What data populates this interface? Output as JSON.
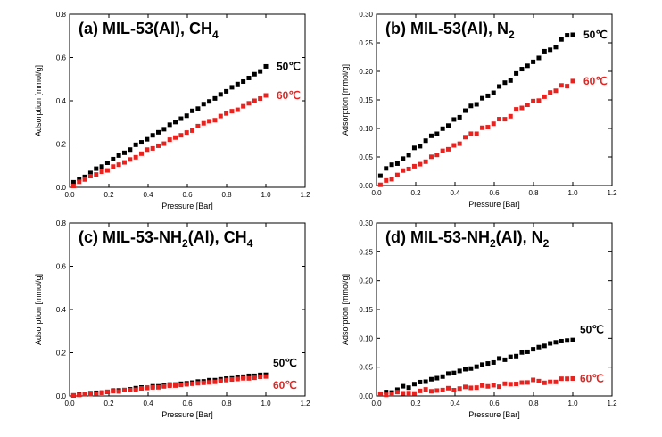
{
  "chart_data": [
    {
      "type": "scatter",
      "title": "(a) MIL-53(Al), CH",
      "title_subscript": "4",
      "xlabel": "Pressure [Bar]",
      "ylabel": "Adsorption [mmol/g]",
      "xlim": [
        0.0,
        1.2
      ],
      "ylim": [
        0.0,
        0.8
      ],
      "xticks": [
        "0.0",
        "0.2",
        "0.4",
        "0.6",
        "0.8",
        "1.0",
        "1.2"
      ],
      "yticks": [
        "0.0",
        "0.2",
        "0.4",
        "0.6",
        "0.8"
      ],
      "series": [
        {
          "name": "50℃",
          "color": "#000000",
          "label_pos": "right",
          "start": 0.02,
          "end": 0.555,
          "points": 35,
          "wiggle": 0.004
        },
        {
          "name": "60℃",
          "color": "#e8231f",
          "label_pos": "right",
          "start": 0.01,
          "end": 0.425,
          "points": 35,
          "wiggle": 0.006
        }
      ]
    },
    {
      "type": "scatter",
      "title": "(b) MIL-53(Al), N",
      "title_subscript": "2",
      "xlabel": "Pressure [Bar]",
      "ylabel": "Adsorption [mmol/g]",
      "xlim": [
        0.0,
        1.2
      ],
      "ylim": [
        0.0,
        0.3
      ],
      "xticks": [
        "0.0",
        "0.2",
        "0.4",
        "0.6",
        "0.8",
        "1.0",
        "1.2"
      ],
      "yticks": [
        "0.00",
        "0.05",
        "0.10",
        "0.15",
        "0.20",
        "0.25",
        "0.30"
      ],
      "series": [
        {
          "name": "50℃",
          "color": "#000000",
          "label_pos": "right",
          "start": 0.02,
          "end": 0.268,
          "points": 35,
          "wiggle": 0.004
        },
        {
          "name": "60℃",
          "color": "#e8231f",
          "label_pos": "right",
          "start": 0.002,
          "end": 0.183,
          "points": 35,
          "wiggle": 0.004
        }
      ]
    },
    {
      "type": "scatter",
      "title": "(c) MIL-53-NH",
      "title_subscript": "2",
      "title_suffix": "(Al), CH",
      "title_subscript2": "4",
      "xlabel": "Pressure [Bar]",
      "ylabel": "Adsorption [mmol/g]",
      "xlim": [
        0.0,
        1.2
      ],
      "ylim": [
        0.0,
        0.8
      ],
      "xticks": [
        "0.0",
        "0.2",
        "0.4",
        "0.6",
        "0.8",
        "1.0",
        "1.2"
      ],
      "yticks": [
        "0.0",
        "0.2",
        "0.4",
        "0.6",
        "0.8"
      ],
      "series": [
        {
          "name": "50℃",
          "color": "#000000",
          "label_pos": "right",
          "start": 0.003,
          "end": 0.1,
          "points": 35,
          "wiggle": 0.002
        },
        {
          "name": "60℃",
          "color": "#e8231f",
          "label_pos": "right",
          "start": 0.002,
          "end": 0.09,
          "points": 35,
          "wiggle": 0.002
        }
      ]
    },
    {
      "type": "scatter",
      "title": "(d) MIL-53-NH",
      "title_subscript": "2",
      "title_suffix": "(Al), N",
      "title_subscript2": "2",
      "xlabel": "Pressure [Bar]",
      "ylabel": "Adsorption [mmol/g]",
      "xlim": [
        0.0,
        1.2
      ],
      "ylim": [
        0.0,
        0.3
      ],
      "xticks": [
        "0.0",
        "0.2",
        "0.4",
        "0.6",
        "0.8",
        "1.0",
        "1.2"
      ],
      "yticks": [
        "0.00",
        "0.05",
        "0.10",
        "0.15",
        "0.20",
        "0.25",
        "0.30"
      ],
      "series": [
        {
          "name": "50℃",
          "color": "#000000",
          "label_pos": "right",
          "start": 0.003,
          "end": 0.1,
          "points": 35,
          "wiggle": 0.003
        },
        {
          "name": "60℃",
          "color": "#e8231f",
          "label_pos": "right",
          "start": 0.001,
          "end": 0.03,
          "points": 35,
          "wiggle": 0.004
        }
      ]
    }
  ]
}
